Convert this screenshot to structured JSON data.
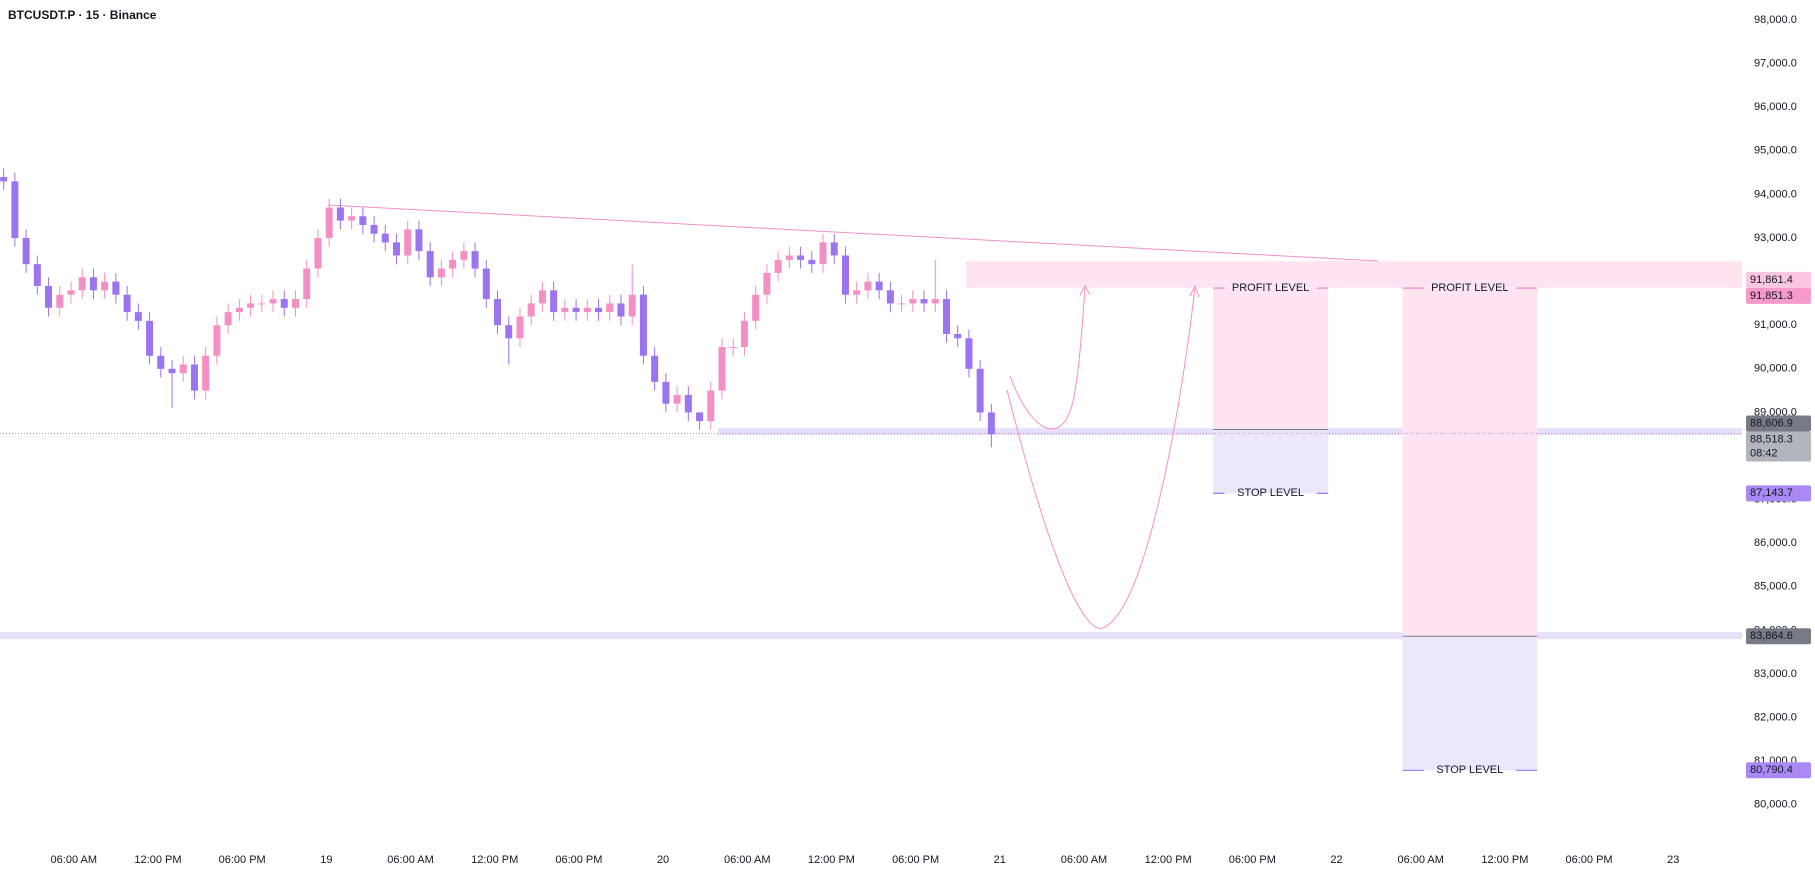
{
  "chart_data": {
    "type": "candlestick",
    "title": "BTCUSDT.P · 15 · Binance",
    "up_color": "#f48fc4",
    "down_color": "#9b74ef",
    "grid": false,
    "x": [
      1.0,
      1.8,
      2.6,
      3.4,
      4.2,
      5.0,
      5.8,
      6.6,
      7.4,
      8.2,
      9.0,
      9.8,
      10.6,
      11.4,
      12.2,
      13.0,
      13.8,
      14.6,
      15.4,
      16.2,
      17.0,
      17.8,
      18.6,
      19.4,
      20.2,
      21.0,
      21.8,
      22.6,
      23.4,
      24.2,
      25.0,
      25.8,
      26.6,
      27.4,
      28.2,
      29.0,
      29.8,
      30.6,
      31.4,
      32.2,
      33.0,
      33.8,
      34.6,
      35.4,
      36.2,
      37.0,
      37.8,
      38.6,
      39.4,
      40.2,
      41.0,
      41.8,
      42.6,
      43.4,
      44.2,
      45.0,
      45.8,
      46.6,
      47.4,
      48.2,
      49.0,
      49.8,
      50.6,
      51.4,
      52.2,
      53.0,
      53.8,
      54.6,
      55.4,
      56.2,
      57.0,
      57.8,
      58.6,
      59.4,
      60.2,
      61.0,
      61.8,
      62.6,
      63.4,
      64.2,
      65.0,
      65.8,
      66.6,
      67.4,
      68.2,
      69.0,
      69.8,
      70.6,
      71.4
    ],
    "open": [
      94400,
      94300,
      93000,
      92400,
      91900,
      91400,
      91700,
      91800,
      92100,
      91800,
      92000,
      91700,
      91300,
      91100,
      90300,
      90000,
      89900,
      90100,
      89500,
      90300,
      91000,
      91300,
      91400,
      91500,
      91500,
      91600,
      91400,
      91600,
      92300,
      93000,
      93700,
      93400,
      93500,
      93300,
      93100,
      92900,
      92600,
      93200,
      92700,
      92100,
      92300,
      92500,
      92700,
      92300,
      91600,
      91000,
      90700,
      91200,
      91500,
      91800,
      91300,
      91400,
      91300,
      91400,
      91300,
      91500,
      91200,
      91700,
      90300,
      89700,
      89200,
      89400,
      89000,
      88800,
      89500,
      90500,
      90500,
      91100,
      91700,
      92200,
      92500,
      92600,
      92500,
      92400,
      92900,
      92600,
      91700,
      91800,
      92000,
      91800,
      91500,
      91500,
      91600,
      91500,
      91600,
      90800,
      90700,
      90000,
      89000
    ],
    "high": [
      94600,
      94500,
      93200,
      92600,
      92100,
      91900,
      92000,
      92300,
      92300,
      92200,
      92200,
      91900,
      91500,
      91300,
      90500,
      90200,
      90300,
      90300,
      90500,
      91200,
      91500,
      91600,
      91700,
      91700,
      91800,
      91800,
      91800,
      92500,
      93200,
      93900,
      93900,
      93700,
      93700,
      93500,
      93300,
      93100,
      93400,
      93400,
      92900,
      92500,
      92700,
      92900,
      92900,
      92500,
      91800,
      91200,
      91400,
      91700,
      92000,
      92000,
      91600,
      91600,
      91600,
      91600,
      91700,
      91700,
      92400,
      91900,
      90500,
      89900,
      89600,
      89600,
      89000,
      89700,
      90700,
      90700,
      91300,
      91900,
      92400,
      92700,
      92800,
      92800,
      92700,
      93100,
      93100,
      92800,
      92000,
      92200,
      92200,
      92000,
      91700,
      91800,
      91800,
      92500,
      91800,
      91000,
      90900,
      90200,
      89200
    ],
    "low": [
      94100,
      92800,
      92200,
      91700,
      91200,
      91200,
      91500,
      91600,
      91600,
      91600,
      91500,
      91100,
      90900,
      90100,
      89800,
      89100,
      89700,
      89300,
      89300,
      90100,
      90800,
      91100,
      91200,
      91300,
      91300,
      91200,
      91200,
      91400,
      92100,
      92800,
      93200,
      93200,
      93100,
      92900,
      92700,
      92400,
      92400,
      92500,
      91900,
      91900,
      92100,
      92300,
      92100,
      91400,
      90800,
      90100,
      90500,
      91000,
      91300,
      91100,
      91100,
      91100,
      91100,
      91100,
      91100,
      91000,
      91000,
      90100,
      89500,
      89000,
      89000,
      88800,
      88600,
      88600,
      89300,
      90300,
      90300,
      90900,
      91500,
      92000,
      92300,
      92300,
      92200,
      92200,
      92400,
      91500,
      91500,
      91600,
      91600,
      91300,
      91300,
      91300,
      91300,
      91300,
      90600,
      90500,
      89800,
      88800,
      88200
    ],
    "close": [
      94300,
      93000,
      92400,
      91900,
      91400,
      91700,
      91800,
      92100,
      91800,
      92000,
      91700,
      91300,
      91100,
      90300,
      90000,
      89900,
      90100,
      89500,
      90300,
      91000,
      91300,
      91400,
      91500,
      91500,
      91600,
      91400,
      91600,
      92300,
      93000,
      93700,
      93400,
      93500,
      93300,
      93100,
      92900,
      92600,
      93200,
      92700,
      92100,
      92300,
      92500,
      92700,
      92300,
      91600,
      91000,
      90700,
      91200,
      91500,
      91800,
      91300,
      91400,
      91300,
      91400,
      91300,
      91500,
      91200,
      91700,
      90300,
      89700,
      89200,
      89400,
      89000,
      88800,
      89500,
      90500,
      90500,
      91100,
      91700,
      92200,
      92500,
      92600,
      92500,
      92400,
      92900,
      92600,
      91700,
      91800,
      92000,
      91800,
      91500,
      91500,
      91600,
      91500,
      91600,
      90800,
      90700,
      90000,
      89000,
      88500
    ],
    "xlim": [
      0.74,
      124.9
    ],
    "xticks": [
      {
        "value": 6,
        "label": "06:00 AM"
      },
      {
        "value": 12,
        "label": "12:00 PM"
      },
      {
        "value": 18,
        "label": "06:00 PM"
      },
      {
        "value": 24,
        "label": "19"
      },
      {
        "value": 30,
        "label": "06:00 AM"
      },
      {
        "value": 36,
        "label": "12:00 PM"
      },
      {
        "value": 42,
        "label": "06:00 PM"
      },
      {
        "value": 48,
        "label": "20"
      },
      {
        "value": 54,
        "label": "06:00 AM"
      },
      {
        "value": 60,
        "label": "12:00 PM"
      },
      {
        "value": 66,
        "label": "06:00 PM"
      },
      {
        "value": 72,
        "label": "21"
      },
      {
        "value": 78,
        "label": "06:00 AM"
      },
      {
        "value": 84,
        "label": "12:00 PM"
      },
      {
        "value": 90,
        "label": "06:00 PM"
      },
      {
        "value": 96,
        "label": "22"
      },
      {
        "value": 102,
        "label": "06:00 AM"
      },
      {
        "value": 108,
        "label": "12:00 PM"
      },
      {
        "value": 114,
        "label": "06:00 PM"
      },
      {
        "value": 120,
        "label": "23"
      }
    ],
    "ylim": [
      79100,
      98460
    ],
    "yticks": [
      {
        "value": 80000,
        "label": "80,000.0"
      },
      {
        "value": 81000,
        "label": "81,000.0"
      },
      {
        "value": 82000,
        "label": "82,000.0"
      },
      {
        "value": 83000,
        "label": "83,000.0"
      },
      {
        "value": 84000,
        "label": "84,000.0"
      },
      {
        "value": 85000,
        "label": "85,000.0"
      },
      {
        "value": 86000,
        "label": "86,000.0"
      },
      {
        "value": 87000,
        "label": "87,000.0"
      },
      {
        "value": 88000,
        "label": "88,000.0"
      },
      {
        "value": 89000,
        "label": "89,000.0"
      },
      {
        "value": 90000,
        "label": "90,000.0"
      },
      {
        "value": 91000,
        "label": "91,000.0"
      },
      {
        "value": 92000,
        "label": "92,000.0"
      },
      {
        "value": 93000,
        "label": "93,000.0"
      },
      {
        "value": 94000,
        "label": "94,000.0"
      },
      {
        "value": 95000,
        "label": "95,000.0"
      },
      {
        "value": 96000,
        "label": "96,000.0"
      },
      {
        "value": 97000,
        "label": "97,000.0"
      },
      {
        "value": 98000,
        "label": "98,000.0"
      }
    ],
    "zones": [
      {
        "from": 91861.4,
        "to": 92470,
        "start": 69.6,
        "color": "#fde4f0"
      },
      {
        "from": 88480,
        "to": 88640,
        "start": 51.9,
        "color": "#e6e0fb"
      },
      {
        "from": 83800,
        "to": 83960,
        "start": 0.74,
        "color": "#e6e0fb"
      }
    ],
    "positions": [
      {
        "start": 87.2,
        "end": 95.4,
        "entry": 88606.9,
        "profit": 91851.3,
        "stop": 87143.7,
        "profit_label": "PROFIT LEVEL",
        "stop_label": "STOP LEVEL"
      },
      {
        "start": 100.7,
        "end": 110.3,
        "entry": 83864.6,
        "profit": 91851.3,
        "stop": 80790.4,
        "profit_label": "PROFIT LEVEL",
        "stop_label": "STOP LEVEL"
      }
    ],
    "profit_color": "#fde4f0",
    "stop_color": "#ede7fc",
    "price_tags": [
      {
        "value": 91861.4,
        "label": "91,861.4",
        "color": "#fbc6e1",
        "text_color": "#131722"
      },
      {
        "value": 91851.3,
        "label": "91,851.3",
        "color": "#f59acb",
        "text_color": "#131722"
      },
      {
        "value": 88606.9,
        "label": "88,606.9",
        "color": "#787b86",
        "text_color": "#ffffff"
      },
      {
        "value": 88518.3,
        "label": "88,518.3",
        "color": "#b2b5be",
        "text_color": "#131722",
        "countdown": "08:42",
        "line": true
      },
      {
        "value": 87143.7,
        "label": "87,143.7",
        "color": "#a98af5",
        "text_color": "#131722"
      },
      {
        "value": 83864.6,
        "label": "83,864.6",
        "color": "#787b86",
        "text_color": "#ffffff"
      },
      {
        "value": 80790.4,
        "label": "80,790.4",
        "color": "#a98af5",
        "text_color": "#131722"
      }
    ]
  }
}
